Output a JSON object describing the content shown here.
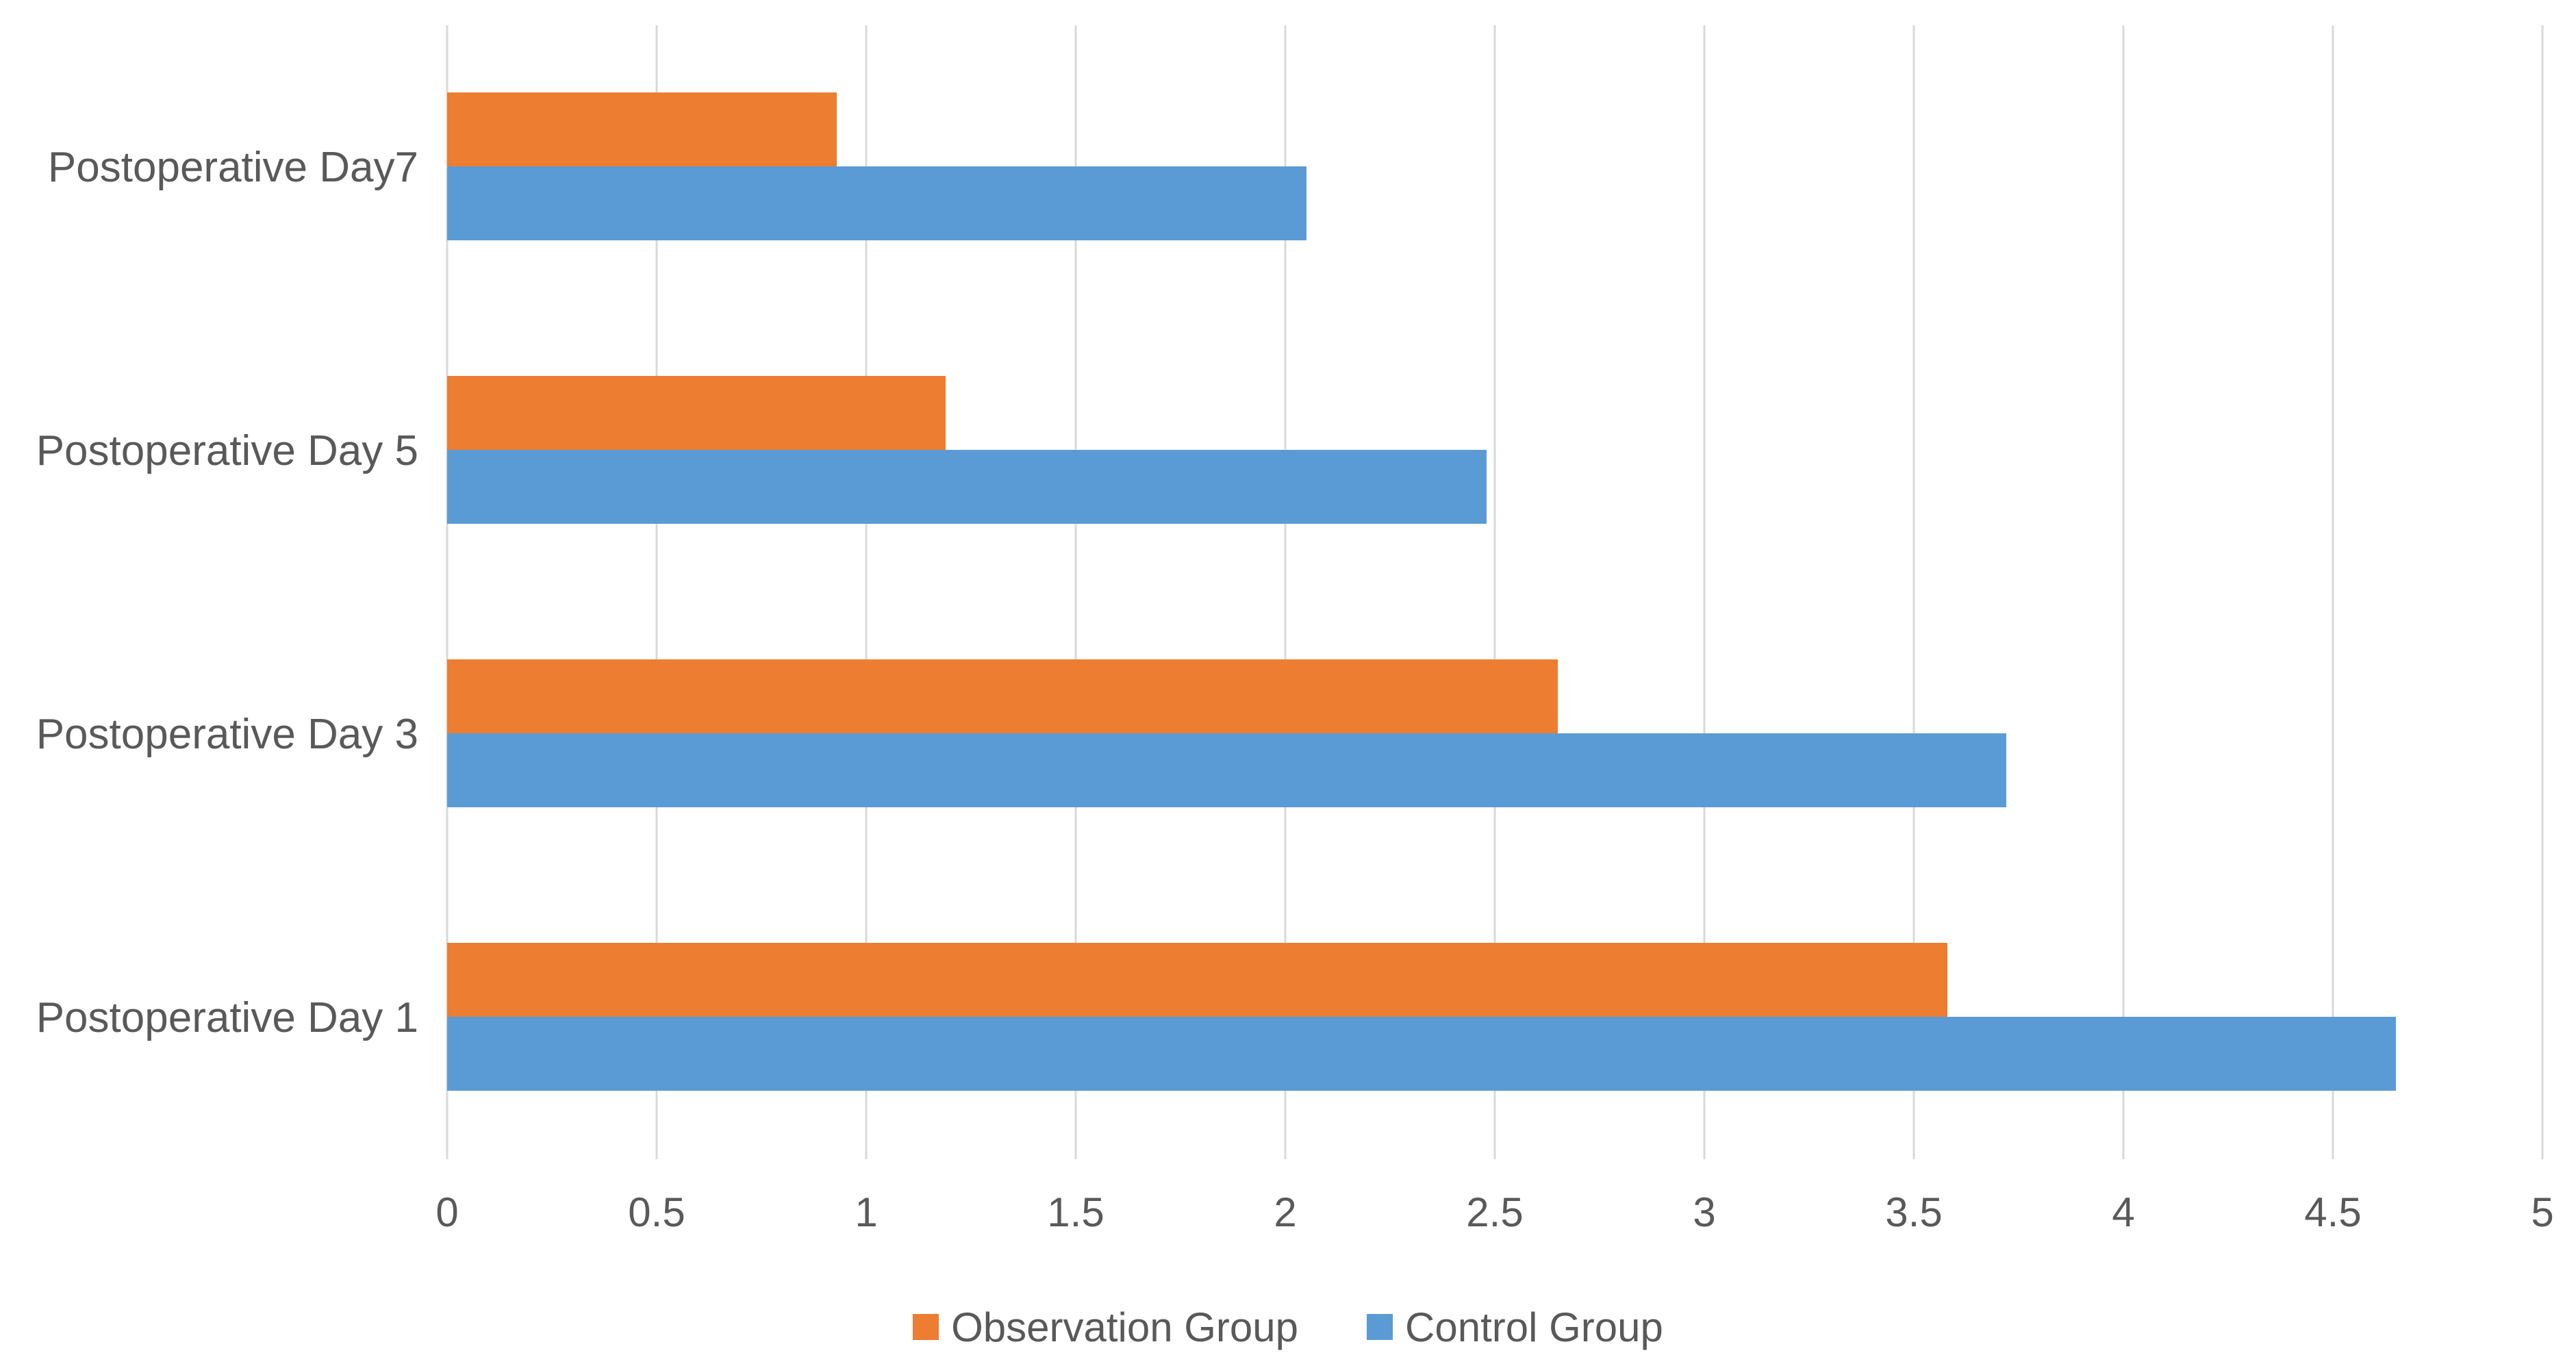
{
  "colors": {
    "background": "#ffffff",
    "gridline": "#d9d9d9",
    "axis_text": "#595959",
    "observation_group": "#ed7d31",
    "control_group": "#5b9bd5"
  },
  "chart_data": {
    "type": "bar",
    "orientation": "horizontal",
    "title": "",
    "xlabel": "",
    "ylabel": "",
    "categories": [
      "Postoperative Day7",
      "Postoperative Day 5",
      "Postoperative Day 3",
      "Postoperative Day 1"
    ],
    "series": [
      {
        "name": "Observation Group",
        "color": "#ed7d31",
        "values": [
          0.93,
          1.19,
          2.65,
          3.58
        ]
      },
      {
        "name": "Control Group",
        "color": "#5b9bd5",
        "values": [
          2.05,
          2.48,
          3.72,
          4.65
        ]
      }
    ],
    "xlim": [
      0,
      5
    ],
    "xticks": [
      0,
      0.5,
      1,
      1.5,
      2,
      2.5,
      3,
      3.5,
      4,
      4.5,
      5
    ],
    "xtick_labels": [
      "0",
      "0.5",
      "1",
      "1.5",
      "2",
      "2.5",
      "3",
      "3.5",
      "4",
      "4.5",
      "5"
    ],
    "grid": "vertical",
    "legend_position": "bottom",
    "legend": [
      {
        "label": "Observation Group",
        "swatch_color": "#ed7d31"
      },
      {
        "label": "Control Group",
        "swatch_color": "#5b9bd5"
      }
    ]
  }
}
